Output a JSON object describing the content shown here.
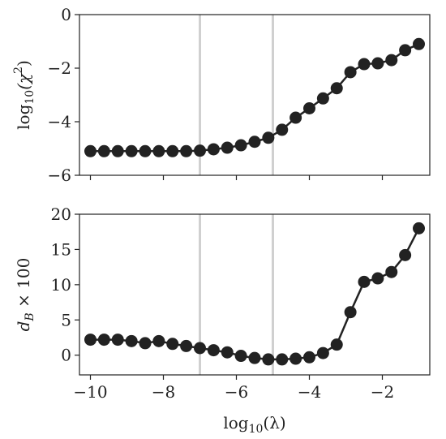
{
  "chart_data": [
    {
      "type": "line",
      "ylabel_base": "log",
      "ylabel_sub": "10",
      "ylabel_inner": "(χ",
      "ylabel_sup": "2",
      "ylabel_close": ")",
      "xlim": [
        -10.3,
        -0.7
      ],
      "ylim": [
        -6,
        0
      ],
      "yticks": [
        -6,
        -4,
        -2,
        0
      ],
      "ytick_labels": [
        "−6",
        "−4",
        "−2",
        "0"
      ],
      "reference_lines_x": [
        -7,
        -5
      ],
      "reference_line_color": "#d0d0d0",
      "marker_color": "#222222",
      "series": [
        {
          "x": [
            -10,
            -9.625,
            -9.25,
            -8.875,
            -8.5,
            -8.125,
            -7.75,
            -7.375,
            -7,
            -6.625,
            -6.25,
            -5.875,
            -5.5,
            -5.125,
            -4.75,
            -4.375,
            -4,
            -3.625,
            -3.25,
            -2.875,
            -2.5,
            -2.125,
            -1.75,
            -1.375,
            -1
          ],
          "y": [
            -5.1,
            -5.1,
            -5.1,
            -5.1,
            -5.1,
            -5.1,
            -5.1,
            -5.1,
            -5.08,
            -5.03,
            -4.97,
            -4.88,
            -4.75,
            -4.6,
            -4.3,
            -3.85,
            -3.5,
            -3.13,
            -2.75,
            -2.15,
            -1.85,
            -1.82,
            -1.7,
            -1.33,
            -1.1
          ]
        }
      ]
    },
    {
      "type": "line",
      "ylabel_main": "d",
      "ylabel_sub": "B",
      "ylabel_rest": " × 100",
      "xlabel_base": "log",
      "xlabel_sub": "10",
      "xlabel_rest": "(λ)",
      "xlim": [
        -10.3,
        -0.7
      ],
      "ylim": [
        -2.8,
        20
      ],
      "yticks": [
        0,
        5,
        10,
        15,
        20
      ],
      "ytick_labels": [
        "0",
        "5",
        "10",
        "15",
        "20"
      ],
      "xticks": [
        -10,
        -8,
        -6,
        -4,
        -2
      ],
      "xtick_labels": [
        "−10",
        "−8",
        "−6",
        "−4",
        "−2"
      ],
      "reference_lines_x": [
        -7,
        -5
      ],
      "reference_line_color": "#d0d0d0",
      "marker_color": "#222222",
      "series": [
        {
          "x": [
            -10,
            -9.625,
            -9.25,
            -8.875,
            -8.5,
            -8.125,
            -7.75,
            -7.375,
            -7,
            -6.625,
            -6.25,
            -5.875,
            -5.5,
            -5.125,
            -4.75,
            -4.375,
            -4,
            -3.625,
            -3.25,
            -2.875,
            -2.5,
            -2.125,
            -1.75,
            -1.375,
            -1
          ],
          "y": [
            2.2,
            2.2,
            2.2,
            2.0,
            1.7,
            2.0,
            1.6,
            1.3,
            1.0,
            0.7,
            0.4,
            -0.1,
            -0.4,
            -0.6,
            -0.6,
            -0.5,
            -0.3,
            0.3,
            1.5,
            6.1,
            10.4,
            10.9,
            11.8,
            14.2,
            18.0
          ]
        }
      ]
    }
  ]
}
